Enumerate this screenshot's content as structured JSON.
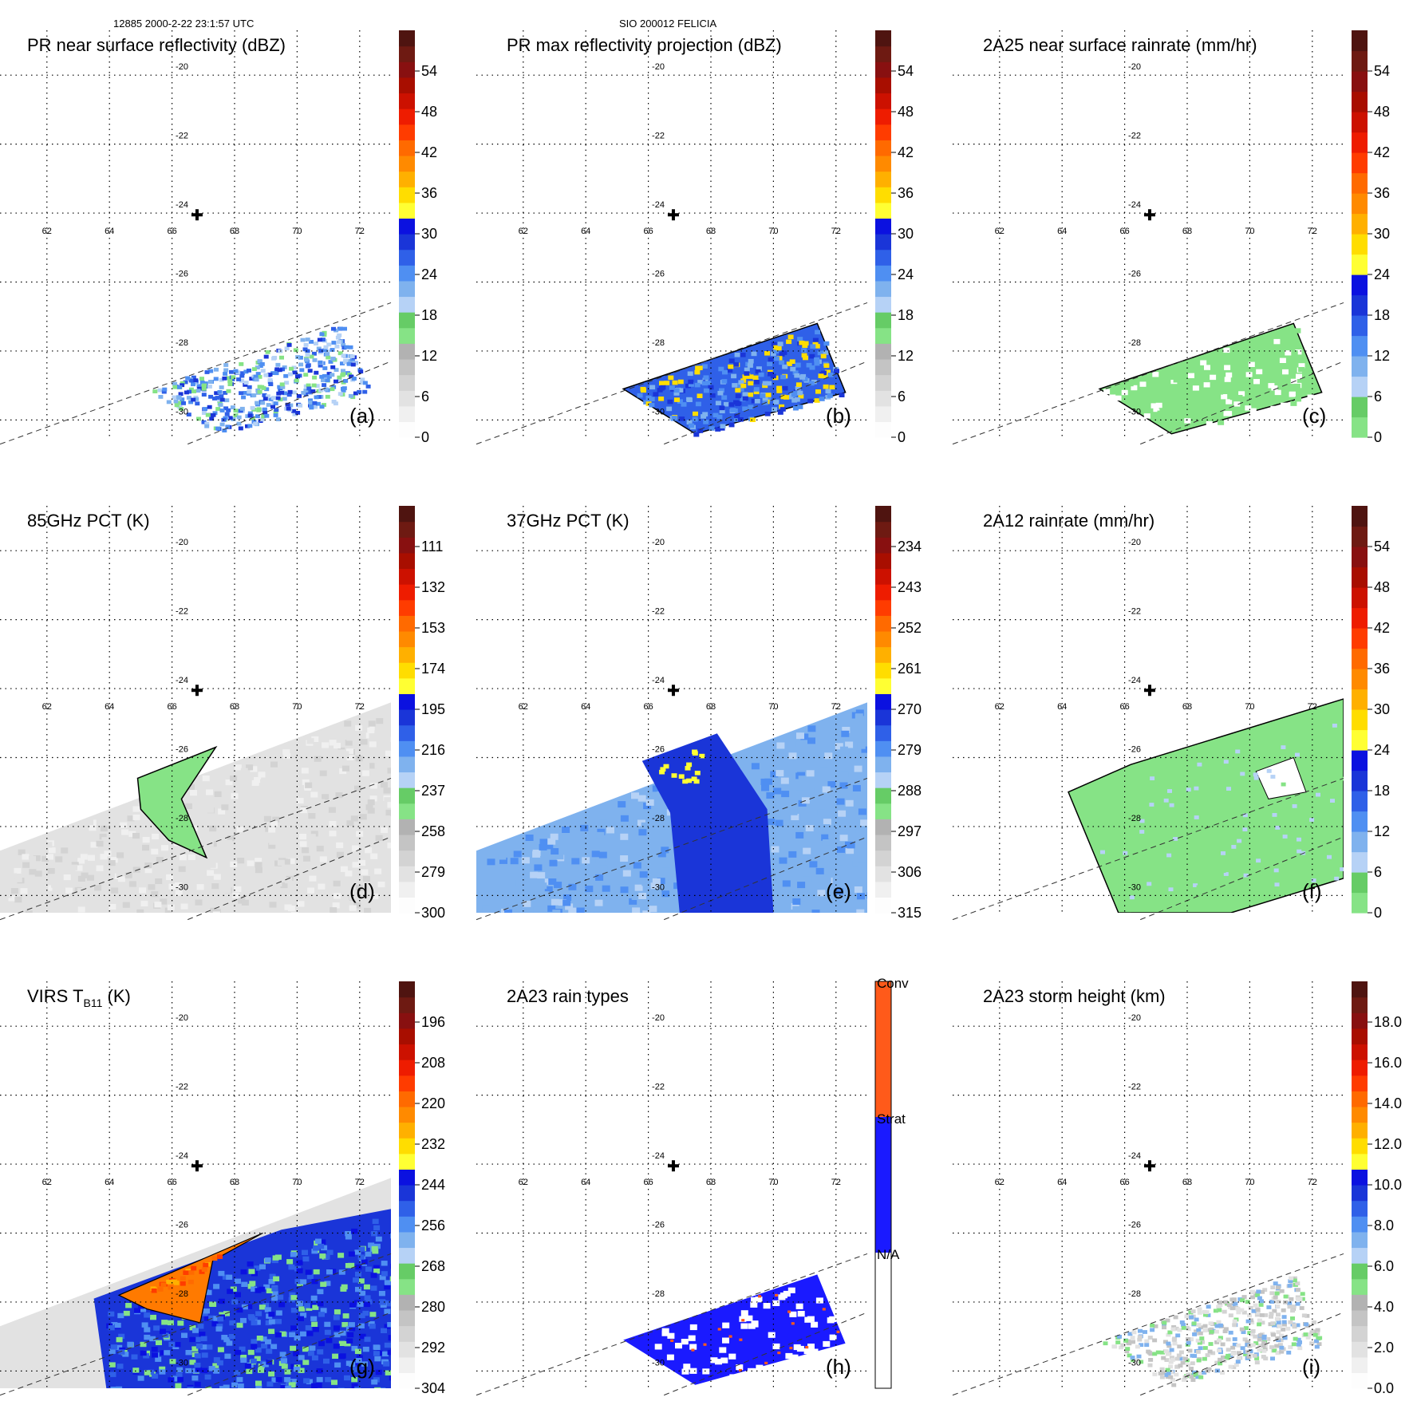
{
  "header": {
    "left": "12885 2000-2-22 23:1:57 UTC",
    "center": "SIO 200012 FELICIA"
  },
  "map": {
    "lon_ticks": [
      "62",
      "64",
      "66",
      "68",
      "70",
      "72"
    ],
    "lat_ticks": [
      "-20",
      "-22",
      "-24",
      "-26",
      "-28",
      "-30"
    ],
    "storm_center_marker": "plus-icon"
  },
  "colors": {
    "gray_scale": [
      "#fdfdfd",
      "#f0f0f0",
      "#e2e2e2",
      "#d3d3d3",
      "#c4c4c4",
      "#b2b2b2"
    ],
    "green_scale": [
      "#86e386",
      "#66cc66"
    ],
    "blue_scale": [
      "#b6d2f6",
      "#7fb2ee",
      "#4f8ff2",
      "#2f60e8",
      "#1a35d8",
      "#0b11e0"
    ],
    "warm_scale": [
      "#ffff33",
      "#ffdd00",
      "#ffb000",
      "#ff8a00",
      "#ff6a00",
      "#ff3c00",
      "#ee1c00",
      "#cc1100",
      "#a80e00",
      "#881010",
      "#6e1a12",
      "#4f1410"
    ],
    "rain_types": {
      "n_a": "#ffffff",
      "strat": "#1a1aff",
      "conv": "#ff5a1a"
    },
    "cloud_top_orange": "#ff7a00",
    "swath_blue": "#7fb2ee"
  },
  "panels": [
    {
      "title": "PR near surface reflectivity (dBZ)",
      "label": "(a)",
      "colorbar": {
        "ticks": [
          "54",
          "48",
          "42",
          "36",
          "30",
          "24",
          "18",
          "12",
          "6",
          "0"
        ]
      },
      "chart_data": {
        "type": "heatmap",
        "variable": "near surface reflectivity",
        "units": "dBZ",
        "lon_range": [
          60.5,
          73
        ],
        "lat_range": [
          -30.5,
          -18.7
        ],
        "value_range": [
          0,
          60
        ],
        "field": "patchy 18-33 dBZ echoes in the PR swath south of 28S between 65E and 71E"
      }
    },
    {
      "title": "PR max reflectivity projection (dBZ)",
      "label": "(b)",
      "colorbar": {
        "ticks": [
          "54",
          "48",
          "42",
          "36",
          "30",
          "24",
          "18",
          "12",
          "6",
          "0"
        ]
      },
      "chart_data": {
        "type": "heatmap",
        "variable": "max reflectivity projection",
        "units": "dBZ",
        "lon_range": [
          60.5,
          73
        ],
        "lat_range": [
          -30.5,
          -18.7
        ],
        "value_range": [
          0,
          60
        ],
        "field": "24-33 dBZ blobs with isolated cells up to 36 dBZ, same area as (a)"
      }
    },
    {
      "title": "2A25 near surface rainrate (mm/hr)",
      "label": "(c)",
      "colorbar": {
        "ticks": [
          "54",
          "48",
          "42",
          "36",
          "30",
          "24",
          "18",
          "12",
          "6",
          "0"
        ]
      },
      "chart_data": {
        "type": "heatmap",
        "variable": "2A25 near surface rainrate",
        "units": "mm/hr",
        "lon_range": [
          60.5,
          73
        ],
        "lat_range": [
          -30.5,
          -18.7
        ],
        "value_range": [
          0,
          60
        ],
        "field": "light rain 0-6 mm/hr in the PR swath south of 28S"
      }
    },
    {
      "title": "85GHz PCT (K)",
      "label": "(d)",
      "colorbar": {
        "ticks": [
          "111",
          "132",
          "153",
          "174",
          "195",
          "216",
          "237",
          "258",
          "279",
          "300"
        ]
      },
      "chart_data": {
        "type": "heatmap",
        "variable": "85GHz polarization corrected temperature",
        "units": "K",
        "lon_range": [
          60.5,
          73
        ],
        "lat_range": [
          -30.5,
          -18.7
        ],
        "value_range": [
          90,
          300
        ],
        "field": "mostly 279-300 K across the TMI swath; 237-258 K band near 26-29S, 65-67E"
      }
    },
    {
      "title": "37GHz PCT (K)",
      "label": "(e)",
      "colorbar": {
        "ticks": [
          "234",
          "243",
          "252",
          "261",
          "270",
          "279",
          "288",
          "297",
          "306",
          "315"
        ]
      },
      "chart_data": {
        "type": "heatmap",
        "variable": "37GHz polarization corrected temperature",
        "units": "K",
        "lon_range": [
          60.5,
          73
        ],
        "lat_range": [
          -30.5,
          -18.7
        ],
        "value_range": [
          225,
          315
        ],
        "field": "270-288 K over the swath with a 261-270 K band from 26S to 30S near 66-69E, yellow 252-261 K spots near 26S"
      }
    },
    {
      "title": "2A12 rainrate (mm/hr)",
      "label": "(f)",
      "colorbar": {
        "ticks": [
          "54",
          "48",
          "42",
          "36",
          "30",
          "24",
          "18",
          "12",
          "6",
          "0"
        ]
      },
      "chart_data": {
        "type": "heatmap",
        "variable": "2A12 rainrate",
        "units": "mm/hr",
        "lon_range": [
          60.5,
          73
        ],
        "lat_range": [
          -30.5,
          -18.7
        ],
        "value_range": [
          0,
          60
        ],
        "field": "widespread 0-6 mm/hr rain over 26-30S, 64-73E with dry holes"
      }
    },
    {
      "title": "VIRS T",
      "title_sub": "B11",
      "title_suffix": " (K)",
      "label": "(g)",
      "colorbar": {
        "ticks": [
          "196",
          "208",
          "220",
          "232",
          "244",
          "256",
          "268",
          "280",
          "292",
          "304"
        ]
      },
      "chart_data": {
        "type": "heatmap",
        "variable": "VIRS channel 11 brightness temperature",
        "units": "K",
        "lon_range": [
          60.5,
          73
        ],
        "lat_range": [
          -30.5,
          -18.7
        ],
        "value_range": [
          184,
          304
        ],
        "field": "cold cloud tops 208-232 K near 26-28S, 64-69E; 232-256 K shield to the south; 280-304 K elsewhere"
      }
    },
    {
      "title": "2A23 rain types",
      "label": "(h)",
      "colorbar": {
        "labels": [
          "Conv",
          "Strat",
          "N/A"
        ]
      },
      "chart_data": {
        "type": "heatmap",
        "variable": "2A23 rain type",
        "categories": [
          "Conv",
          "Strat",
          "N/A"
        ],
        "lon_range": [
          60.5,
          73
        ],
        "lat_range": [
          -30.5,
          -18.7
        ],
        "field": "predominantly stratiform rain in the PR swath south of 28S with scattered convective pixels"
      }
    },
    {
      "title": "2A23 storm height (km)",
      "label": "(i)",
      "colorbar": {
        "ticks": [
          "18.0",
          "16.0",
          "14.0",
          "12.0",
          "10.0",
          "8.0",
          "6.0",
          "4.0",
          "2.0",
          "0.0"
        ]
      },
      "chart_data": {
        "type": "heatmap",
        "variable": "2A23 storm height",
        "units": "km",
        "lon_range": [
          60.5,
          73
        ],
        "lat_range": [
          -30.5,
          -18.7
        ],
        "value_range": [
          0,
          20
        ],
        "field": "storm heights mostly 2-6 km in the PR swath south of 28S"
      }
    }
  ]
}
